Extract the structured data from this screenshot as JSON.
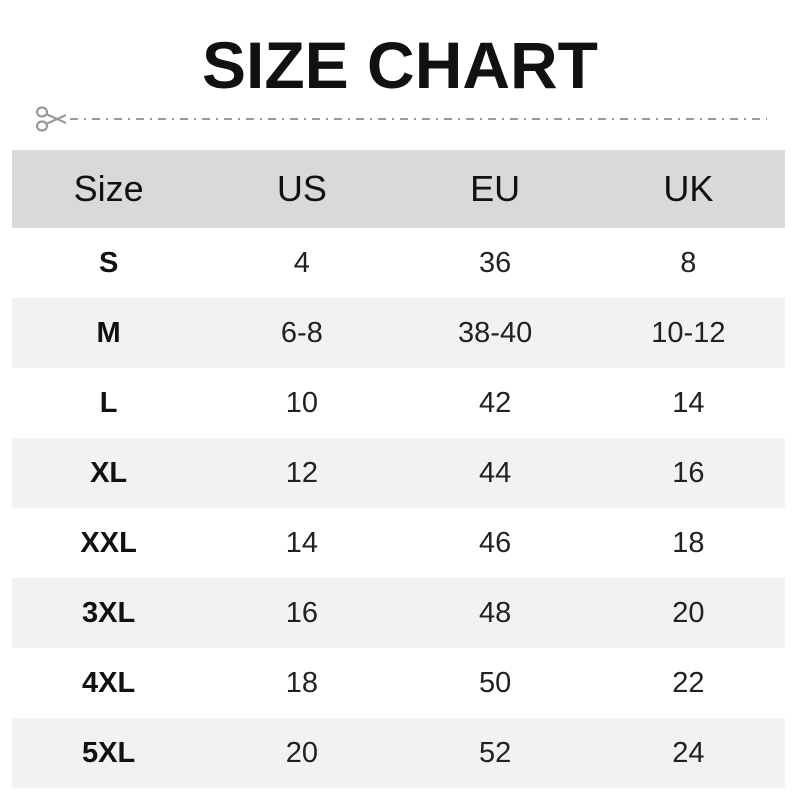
{
  "title": "SIZE CHART",
  "colors": {
    "header_bg": "#d9d9d9",
    "alt_row_bg": "#f2f2f2",
    "cut_line": "#999999"
  },
  "icons": {
    "cut": "scissors-icon"
  },
  "table": {
    "headers": [
      "Size",
      "US",
      "EU",
      "UK"
    ],
    "rows": [
      [
        "S",
        "4",
        "36",
        "8"
      ],
      [
        "M",
        "6-8",
        "38-40",
        "10-12"
      ],
      [
        "L",
        "10",
        "42",
        "14"
      ],
      [
        "XL",
        "12",
        "44",
        "16"
      ],
      [
        "XXL",
        "14",
        "46",
        "18"
      ],
      [
        "3XL",
        "16",
        "48",
        "20"
      ],
      [
        "4XL",
        "18",
        "50",
        "22"
      ],
      [
        "5XL",
        "20",
        "52",
        "24"
      ]
    ]
  }
}
